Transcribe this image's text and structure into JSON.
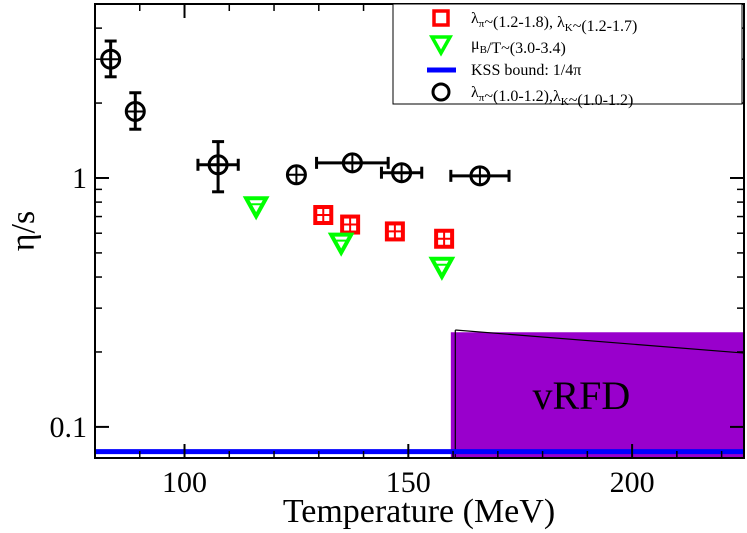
{
  "chart_data": {
    "type": "scatter",
    "xlabel": "Temperature (MeV)",
    "ylabel": "η/s",
    "xlim": [
      80,
      225
    ],
    "ylim": [
      0.075,
      5
    ],
    "yscale": "log",
    "xticks": [
      100,
      150,
      200
    ],
    "xtick_labels": [
      "100",
      "150",
      "200"
    ],
    "yticks": [
      0.1,
      1
    ],
    "ytick_labels": [
      "0.1",
      "1"
    ],
    "legend_position": "top-right",
    "legend": [
      {
        "name": "red-squares",
        "parts": [
          {
            "t": "λ"
          },
          {
            "t": "π",
            "sub": true
          },
          {
            "t": "~(1.2-1.8), λ"
          },
          {
            "t": "K",
            "sub": true
          },
          {
            "t": "~(1.2-1.7)"
          }
        ]
      },
      {
        "name": "green-triangles",
        "parts": [
          {
            "t": "μ"
          },
          {
            "t": "B",
            "sub": true
          },
          {
            "t": "/T~(3.0-3.4)"
          }
        ]
      },
      {
        "name": "kss-bound",
        "parts": [
          {
            "t": "KSS bound: 1/4π"
          }
        ]
      },
      {
        "name": "black-circles",
        "parts": [
          {
            "t": "λ"
          },
          {
            "t": "π",
            "sub": true
          },
          {
            "t": "~(1.0-1.2),λ"
          },
          {
            "t": "K",
            "sub": true
          },
          {
            "t": "~(1.0-1.2)"
          }
        ]
      }
    ],
    "series": [
      {
        "name": "black-circles",
        "color": "#000000",
        "marker": "circle",
        "points": [
          {
            "x": 83.5,
            "y": 3.0,
            "xerr": 0,
            "ylo": 2.55,
            "yhi": 3.55
          },
          {
            "x": 89.0,
            "y": 1.85,
            "xerr": 0,
            "ylo": 1.57,
            "yhi": 2.2
          },
          {
            "x": 107.5,
            "y": 1.13,
            "xerr": 4.5,
            "ylo": 0.88,
            "yhi": 1.4
          },
          {
            "x": 125.0,
            "y": 1.03,
            "xerr": 0,
            "ylo": 1.03,
            "yhi": 1.03
          },
          {
            "x": 137.5,
            "y": 1.15,
            "xerr": 8.0,
            "ylo": 1.15,
            "yhi": 1.15
          },
          {
            "x": 148.5,
            "y": 1.05,
            "xerr": 4.5,
            "ylo": 1.05,
            "yhi": 1.05
          },
          {
            "x": 166.0,
            "y": 1.02,
            "xerr": 6.5,
            "ylo": 1.02,
            "yhi": 1.02
          }
        ]
      },
      {
        "name": "red-squares",
        "color": "#ff0000",
        "marker": "square",
        "points": [
          {
            "x": 131.0,
            "y": 0.71
          },
          {
            "x": 137.0,
            "y": 0.65
          },
          {
            "x": 147.0,
            "y": 0.61
          },
          {
            "x": 158.0,
            "y": 0.57
          }
        ]
      },
      {
        "name": "green-triangles",
        "color": "#00ff00",
        "marker": "triangle-down",
        "points": [
          {
            "x": 116.0,
            "y": 0.77
          },
          {
            "x": 135.0,
            "y": 0.55
          },
          {
            "x": 157.5,
            "y": 0.44
          }
        ]
      }
    ],
    "kss_bound": {
      "value": 0.0796,
      "color": "#0000ff"
    },
    "region": {
      "label": "vRFD",
      "color": "#9900cc",
      "x_from": 159.5,
      "x_to": 225,
      "y_from": 0.075,
      "y_top": 0.24,
      "line_start": [
        160.5,
        0.245
      ],
      "line_end": [
        225,
        0.198
      ]
    }
  }
}
